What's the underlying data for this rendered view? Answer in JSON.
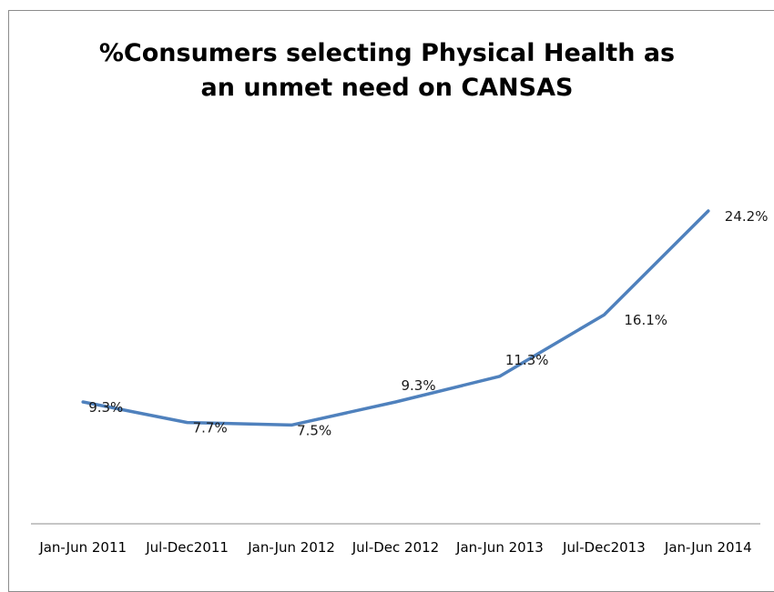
{
  "chart_data": {
    "type": "line",
    "title": "%Consumers selecting Physical Health as\nan unmet need on CANSAS",
    "categories": [
      "Jan-Jun 2011",
      "Jul-Dec2011",
      "Jan-Jun 2012",
      "Jul-Dec 2012",
      "Jan-Jun 2013",
      "Jul-Dec2013",
      "Jan-Jun 2014"
    ],
    "values": [
      9.3,
      7.7,
      7.5,
      9.3,
      11.3,
      16.1,
      24.2
    ],
    "data_labels": [
      "9.3%",
      "7.7%",
      "7.5%",
      "9.3%",
      "11.3%",
      "16.1%",
      "24.2%"
    ],
    "xlabel": "",
    "ylabel": "",
    "ylim": [
      0,
      30
    ],
    "grid": false,
    "legend": "none",
    "line_color": "#4f81bd"
  }
}
